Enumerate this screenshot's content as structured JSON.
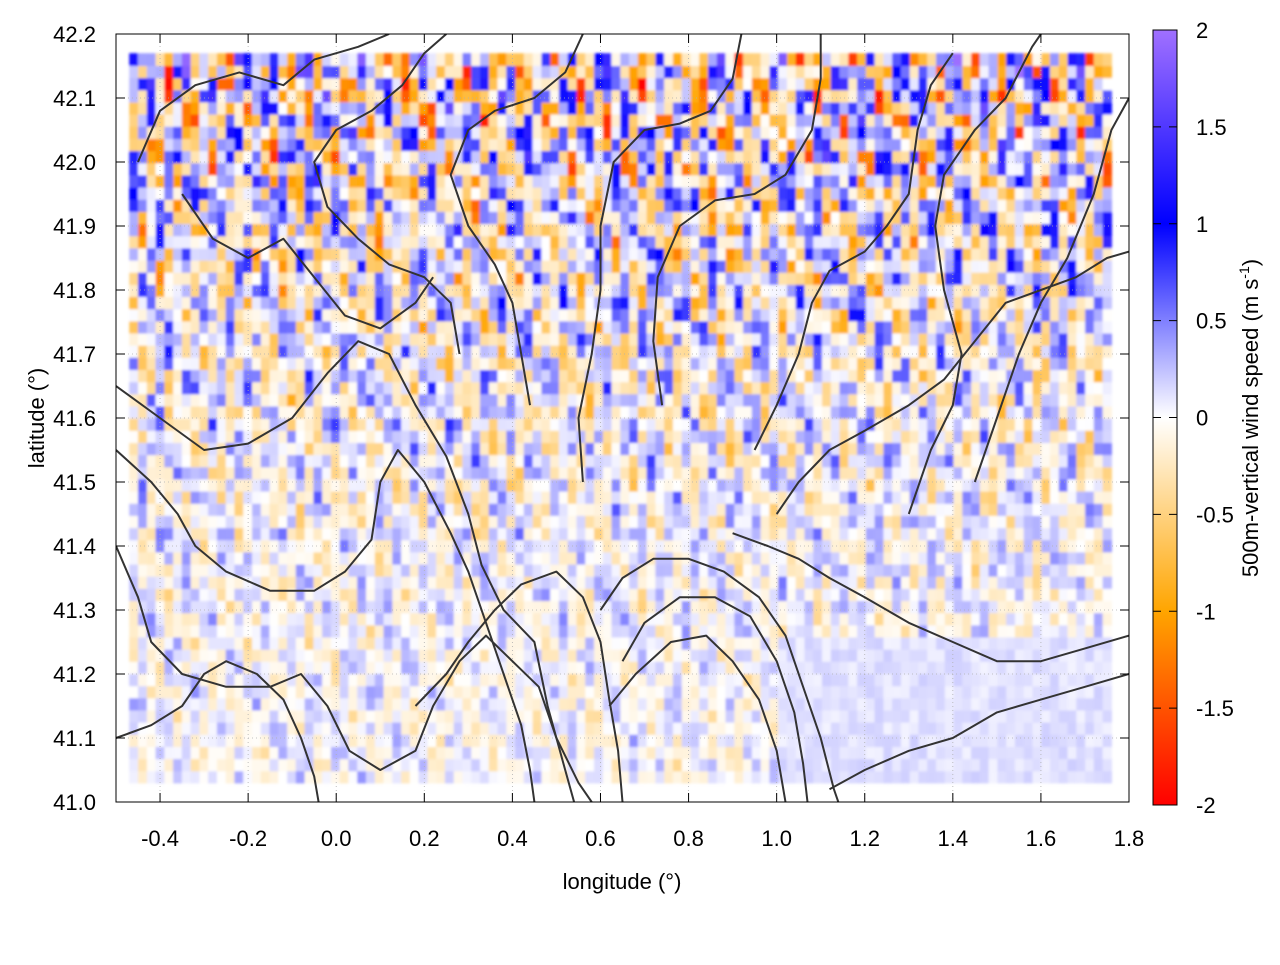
{
  "chart_data": {
    "type": "heatmap",
    "title": "",
    "xlabel": "longitude (°)",
    "ylabel": "latitude (°)",
    "xlim": [
      -0.5,
      1.8
    ],
    "ylim": [
      41.0,
      42.2
    ],
    "xticks": [
      -0.4,
      -0.2,
      0.0,
      0.2,
      0.4,
      0.6,
      0.8,
      1.0,
      1.2,
      1.4,
      1.6,
      1.8
    ],
    "xtick_labels": [
      "-0.4",
      "-0.2",
      "0.0",
      "0.2",
      "0.4",
      "0.6",
      "0.8",
      "1.0",
      "1.2",
      "1.4",
      "1.6",
      "1.8"
    ],
    "yticks": [
      41.0,
      41.1,
      41.2,
      41.3,
      41.4,
      41.5,
      41.6,
      41.7,
      41.8,
      41.9,
      42.0,
      42.1,
      42.2
    ],
    "ytick_labels": [
      "41.0",
      "41.1",
      "41.2",
      "41.3",
      "41.4",
      "41.5",
      "41.6",
      "41.7",
      "41.8",
      "41.9",
      "42.0",
      "42.1",
      "42.2"
    ],
    "grid": true,
    "colorbar": {
      "label_main": "500m-vertical wind speed (m s",
      "label_sup": "-1",
      "label_close": ")",
      "range": [
        -2,
        2
      ],
      "ticks": [
        2,
        1.5,
        1,
        0.5,
        0,
        -0.5,
        -1,
        -1.5,
        -2
      ],
      "tick_labels": [
        "2",
        "1.5",
        "1",
        "0.5",
        "0",
        "-0.5",
        "-1",
        "-1.5",
        "-2"
      ],
      "stops": [
        {
          "value": -2.0,
          "color": "#ff0000"
        },
        {
          "value": -1.0,
          "color": "#ffa500"
        },
        {
          "value": 0.0,
          "color": "#ffffff"
        },
        {
          "value": 1.0,
          "color": "#0000ff"
        },
        {
          "value": 2.0,
          "color": "#a070ff"
        }
      ]
    },
    "field_extent": {
      "lon": [
        -0.47,
        1.76
      ],
      "lat": [
        41.03,
        42.17
      ]
    },
    "contour_color": "#333333",
    "contours": [
      [
        [
          -0.5,
          41.65
        ],
        [
          -0.4,
          41.6
        ],
        [
          -0.3,
          41.55
        ],
        [
          -0.2,
          41.56
        ],
        [
          -0.1,
          41.6
        ],
        [
          -0.02,
          41.67
        ],
        [
          0.05,
          41.72
        ],
        [
          0.12,
          41.7
        ],
        [
          0.18,
          41.62
        ],
        [
          0.25,
          41.54
        ],
        [
          0.3,
          41.45
        ],
        [
          0.33,
          41.37
        ],
        [
          0.38,
          41.3
        ],
        [
          0.45,
          41.25
        ],
        [
          0.48,
          41.15
        ],
        [
          0.52,
          41.05
        ],
        [
          0.54,
          41.0
        ]
      ],
      [
        [
          -0.5,
          41.55
        ],
        [
          -0.42,
          41.5
        ],
        [
          -0.36,
          41.45
        ],
        [
          -0.32,
          41.4
        ],
        [
          -0.25,
          41.36
        ],
        [
          -0.15,
          41.33
        ],
        [
          -0.05,
          41.33
        ],
        [
          0.02,
          41.36
        ],
        [
          0.08,
          41.41
        ],
        [
          0.1,
          41.5
        ],
        [
          0.14,
          41.55
        ],
        [
          0.2,
          41.5
        ],
        [
          0.26,
          41.42
        ],
        [
          0.3,
          41.36
        ],
        [
          0.34,
          41.28
        ],
        [
          0.38,
          41.2
        ],
        [
          0.42,
          41.12
        ],
        [
          0.44,
          41.05
        ],
        [
          0.45,
          41.0
        ]
      ],
      [
        [
          -0.5,
          41.4
        ],
        [
          -0.45,
          41.32
        ],
        [
          -0.42,
          41.25
        ],
        [
          -0.35,
          41.2
        ],
        [
          -0.25,
          41.18
        ],
        [
          -0.15,
          41.18
        ],
        [
          -0.08,
          41.2
        ],
        [
          -0.02,
          41.15
        ],
        [
          0.03,
          41.08
        ],
        [
          0.1,
          41.05
        ],
        [
          0.18,
          41.08
        ],
        [
          0.22,
          41.15
        ],
        [
          0.28,
          41.22
        ],
        [
          0.34,
          41.26
        ],
        [
          0.4,
          41.22
        ],
        [
          0.46,
          41.18
        ],
        [
          0.5,
          41.1
        ],
        [
          0.55,
          41.03
        ],
        [
          0.58,
          41.0
        ]
      ],
      [
        [
          0.28,
          41.7
        ],
        [
          0.26,
          41.78
        ],
        [
          0.2,
          41.82
        ],
        [
          0.12,
          41.84
        ],
        [
          0.05,
          41.88
        ],
        [
          -0.02,
          41.93
        ],
        [
          -0.05,
          42.0
        ],
        [
          0.0,
          42.05
        ],
        [
          0.08,
          42.08
        ],
        [
          0.15,
          42.12
        ],
        [
          0.2,
          42.17
        ],
        [
          0.25,
          42.2
        ]
      ],
      [
        [
          0.44,
          41.62
        ],
        [
          0.42,
          41.7
        ],
        [
          0.4,
          41.78
        ],
        [
          0.36,
          41.84
        ],
        [
          0.3,
          41.9
        ],
        [
          0.26,
          41.98
        ],
        [
          0.3,
          42.05
        ],
        [
          0.36,
          42.08
        ],
        [
          0.45,
          42.1
        ],
        [
          0.52,
          42.14
        ],
        [
          0.56,
          42.2
        ]
      ],
      [
        [
          0.56,
          41.5
        ],
        [
          0.55,
          41.6
        ],
        [
          0.58,
          41.7
        ],
        [
          0.6,
          41.8
        ],
        [
          0.6,
          41.9
        ],
        [
          0.63,
          42.0
        ],
        [
          0.7,
          42.05
        ],
        [
          0.78,
          42.06
        ],
        [
          0.85,
          42.08
        ],
        [
          0.9,
          42.13
        ],
        [
          0.92,
          42.2
        ]
      ],
      [
        [
          0.74,
          41.62
        ],
        [
          0.72,
          41.72
        ],
        [
          0.73,
          41.82
        ],
        [
          0.78,
          41.9
        ],
        [
          0.86,
          41.94
        ],
        [
          0.95,
          41.95
        ],
        [
          1.02,
          41.98
        ],
        [
          1.08,
          42.05
        ],
        [
          1.1,
          42.13
        ],
        [
          1.1,
          42.2
        ]
      ],
      [
        [
          0.95,
          41.55
        ],
        [
          1.0,
          41.62
        ],
        [
          1.05,
          41.7
        ],
        [
          1.08,
          41.78
        ],
        [
          1.12,
          41.83
        ],
        [
          1.2,
          41.86
        ],
        [
          1.25,
          41.9
        ],
        [
          1.3,
          41.95
        ],
        [
          1.32,
          42.05
        ],
        [
          1.35,
          42.12
        ],
        [
          1.4,
          42.17
        ]
      ],
      [
        [
          1.0,
          41.45
        ],
        [
          1.05,
          41.5
        ],
        [
          1.12,
          41.55
        ],
        [
          1.2,
          41.58
        ],
        [
          1.3,
          41.62
        ],
        [
          1.38,
          41.66
        ],
        [
          1.45,
          41.72
        ],
        [
          1.52,
          41.78
        ],
        [
          1.6,
          41.8
        ],
        [
          1.68,
          41.82
        ],
        [
          1.75,
          41.85
        ],
        [
          1.8,
          41.86
        ]
      ],
      [
        [
          0.9,
          41.42
        ],
        [
          0.98,
          41.4
        ],
        [
          1.05,
          41.38
        ],
        [
          1.12,
          41.35
        ],
        [
          1.2,
          41.32
        ],
        [
          1.3,
          41.28
        ],
        [
          1.4,
          41.25
        ],
        [
          1.5,
          41.22
        ],
        [
          1.6,
          41.22
        ],
        [
          1.7,
          41.24
        ],
        [
          1.8,
          41.26
        ]
      ],
      [
        [
          0.6,
          41.3
        ],
        [
          0.65,
          41.35
        ],
        [
          0.72,
          41.38
        ],
        [
          0.8,
          41.38
        ],
        [
          0.88,
          41.36
        ],
        [
          0.96,
          41.32
        ],
        [
          1.02,
          41.26
        ],
        [
          1.06,
          41.18
        ],
        [
          1.1,
          41.1
        ],
        [
          1.13,
          41.02
        ],
        [
          1.14,
          41.0
        ]
      ],
      [
        [
          0.65,
          41.22
        ],
        [
          0.7,
          41.28
        ],
        [
          0.78,
          41.32
        ],
        [
          0.86,
          41.32
        ],
        [
          0.94,
          41.29
        ],
        [
          1.0,
          41.22
        ],
        [
          1.04,
          41.14
        ],
        [
          1.06,
          41.06
        ],
        [
          1.07,
          41.0
        ]
      ],
      [
        [
          0.62,
          41.15
        ],
        [
          0.68,
          41.2
        ],
        [
          0.76,
          41.25
        ],
        [
          0.84,
          41.26
        ],
        [
          0.9,
          41.22
        ],
        [
          0.96,
          41.16
        ],
        [
          1.0,
          41.08
        ],
        [
          1.02,
          41.0
        ]
      ],
      [
        [
          -0.35,
          41.95
        ],
        [
          -0.28,
          41.88
        ],
        [
          -0.2,
          41.85
        ],
        [
          -0.12,
          41.88
        ],
        [
          -0.05,
          41.82
        ],
        [
          0.02,
          41.76
        ],
        [
          0.1,
          41.74
        ],
        [
          0.18,
          41.78
        ],
        [
          0.22,
          41.82
        ]
      ],
      [
        [
          -0.45,
          42.0
        ],
        [
          -0.4,
          42.08
        ],
        [
          -0.32,
          42.12
        ],
        [
          -0.22,
          42.14
        ],
        [
          -0.12,
          42.12
        ],
        [
          -0.05,
          42.16
        ],
        [
          0.05,
          42.18
        ],
        [
          0.12,
          42.2
        ]
      ],
      [
        [
          1.45,
          41.5
        ],
        [
          1.5,
          41.6
        ],
        [
          1.55,
          41.7
        ],
        [
          1.6,
          41.78
        ],
        [
          1.66,
          41.85
        ],
        [
          1.72,
          41.95
        ],
        [
          1.76,
          42.05
        ],
        [
          1.8,
          42.1
        ]
      ],
      [
        [
          1.3,
          41.45
        ],
        [
          1.35,
          41.55
        ],
        [
          1.4,
          41.62
        ],
        [
          1.42,
          41.7
        ],
        [
          1.38,
          41.8
        ],
        [
          1.36,
          41.9
        ],
        [
          1.38,
          41.98
        ],
        [
          1.45,
          42.05
        ],
        [
          1.52,
          42.1
        ],
        [
          1.58,
          42.18
        ],
        [
          1.6,
          42.2
        ]
      ],
      [
        [
          -0.5,
          41.1
        ],
        [
          -0.42,
          41.12
        ],
        [
          -0.35,
          41.15
        ],
        [
          -0.3,
          41.2
        ],
        [
          -0.25,
          41.22
        ],
        [
          -0.18,
          41.2
        ],
        [
          -0.12,
          41.16
        ],
        [
          -0.08,
          41.1
        ],
        [
          -0.05,
          41.04
        ],
        [
          -0.04,
          41.0
        ]
      ],
      [
        [
          0.18,
          41.15
        ],
        [
          0.25,
          41.2
        ],
        [
          0.3,
          41.25
        ],
        [
          0.36,
          41.3
        ],
        [
          0.42,
          41.34
        ],
        [
          0.5,
          41.36
        ],
        [
          0.56,
          41.32
        ],
        [
          0.6,
          41.25
        ],
        [
          0.62,
          41.16
        ],
        [
          0.64,
          41.08
        ],
        [
          0.65,
          41.0
        ]
      ],
      [
        [
          1.12,
          41.02
        ],
        [
          1.2,
          41.05
        ],
        [
          1.3,
          41.08
        ],
        [
          1.4,
          41.1
        ],
        [
          1.5,
          41.14
        ],
        [
          1.6,
          41.16
        ],
        [
          1.7,
          41.18
        ],
        [
          1.8,
          41.2
        ]
      ]
    ]
  }
}
